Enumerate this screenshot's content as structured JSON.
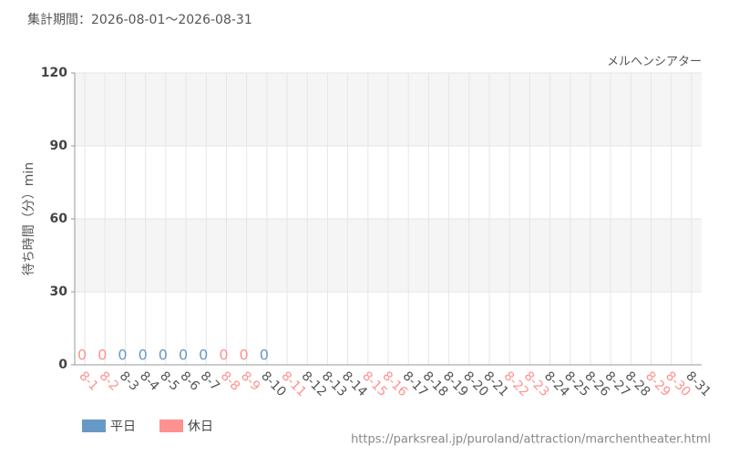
{
  "chart_data": {
    "type": "bar",
    "title": "集計期間：2026-08-01～2026-08-31",
    "subtitle": "メルヘンシアター",
    "y_label": "待ち時間（分）min",
    "source": "https://parksreal.jp/puroland/attraction/marchentheater.html",
    "categories": [
      "8-1",
      "8-2",
      "8-3",
      "8-4",
      "8-5",
      "8-6",
      "8-7",
      "8-8",
      "8-9",
      "8-10",
      "8-11",
      "8-12",
      "8-13",
      "8-14",
      "8-15",
      "8-16",
      "8-17",
      "8-18",
      "8-19",
      "8-20",
      "8-21",
      "8-22",
      "8-23",
      "8-24",
      "8-25",
      "8-26",
      "8-27",
      "8-28",
      "8-29",
      "8-30",
      "8-31"
    ],
    "category_colors": [
      "#ff9190",
      "#ff9190",
      "#555555",
      "#555555",
      "#555555",
      "#555555",
      "#555555",
      "#ff9190",
      "#ff9190",
      "#555555",
      "#ff9190",
      "#555555",
      "#555555",
      "#555555",
      "#ff9190",
      "#ff9190",
      "#555555",
      "#555555",
      "#555555",
      "#555555",
      "#555555",
      "#ff9190",
      "#ff9190",
      "#555555",
      "#555555",
      "#555555",
      "#555555",
      "#555555",
      "#ff9190",
      "#ff9190",
      "#555555"
    ],
    "series": [
      {
        "name": "平日",
        "color": "#6699c5",
        "values": [
          null,
          null,
          0,
          0,
          0,
          0,
          0,
          null,
          null,
          0,
          null,
          null,
          null,
          null,
          null,
          null,
          null,
          null,
          null,
          null,
          null,
          null,
          null,
          null,
          null,
          null,
          null,
          null,
          null,
          null,
          null
        ]
      },
      {
        "name": "休日",
        "color": "#ff9190",
        "values": [
          0,
          0,
          null,
          null,
          null,
          null,
          null,
          0,
          0,
          null,
          null,
          null,
          null,
          null,
          null,
          null,
          null,
          null,
          null,
          null,
          null,
          null,
          null,
          null,
          null,
          null,
          null,
          null,
          null,
          null,
          null
        ]
      }
    ],
    "ylim": [
      0,
      120
    ],
    "yticks": [
      0,
      30,
      60,
      90,
      120
    ],
    "grid": true
  }
}
